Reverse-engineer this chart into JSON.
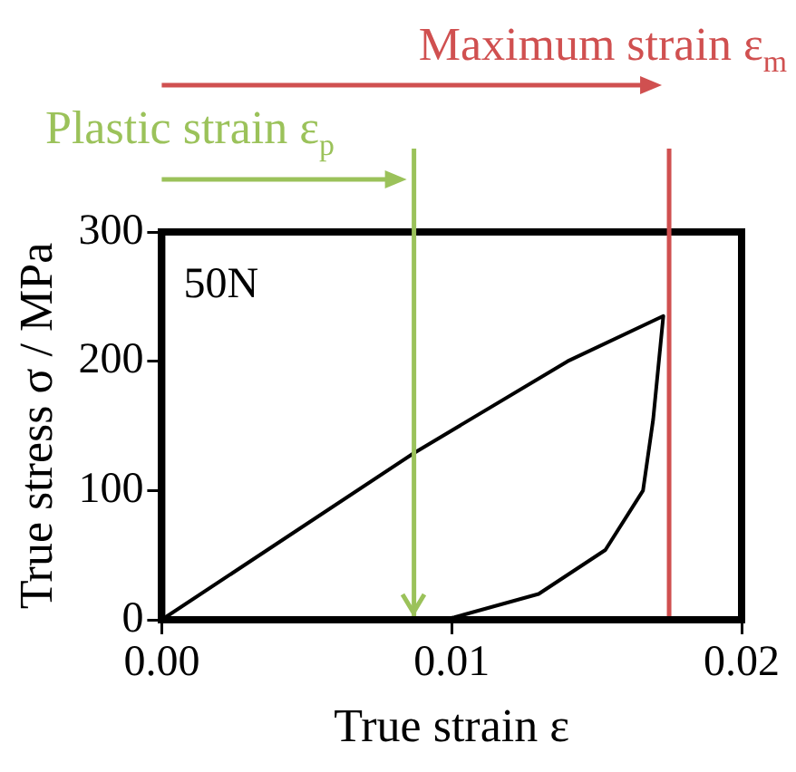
{
  "chart_data": {
    "type": "line",
    "xlabel": "True strain ε",
    "ylabel": "True stress σ / MPa",
    "x": [
      0,
      0.0087,
      0.014,
      0.0173,
      0.01695,
      0.0166,
      0.0153,
      0.013,
      0.0101,
      0.0097
    ],
    "series": [
      {
        "color": "#000000",
        "values": [
          0,
          129,
          200,
          235,
          155,
          100,
          54,
          20,
          2,
          0
        ]
      }
    ],
    "xlim": [
      0,
      0.02
    ],
    "xticks": [
      {
        "value": 0,
        "label": "0.00"
      },
      {
        "value": 0.01,
        "label": "0.01"
      },
      {
        "value": 0.02,
        "label": "0.02"
      }
    ],
    "ylim": [
      0,
      300
    ],
    "yticks": [
      0,
      100,
      200,
      300
    ],
    "ref_lines": [
      {
        "axis": "x",
        "value": 0.0087,
        "label": "Plastic strain ε$_{p}$",
        "color": "#9bc25a"
      },
      {
        "axis": "x",
        "value": 0.0175,
        "label": "Maximum strain ε$_{m}$",
        "color": "#d05050"
      }
    ],
    "annotations": [
      "50N"
    ],
    "grid": false,
    "legend": false,
    "marker": "none",
    "line_style": "solid"
  }
}
